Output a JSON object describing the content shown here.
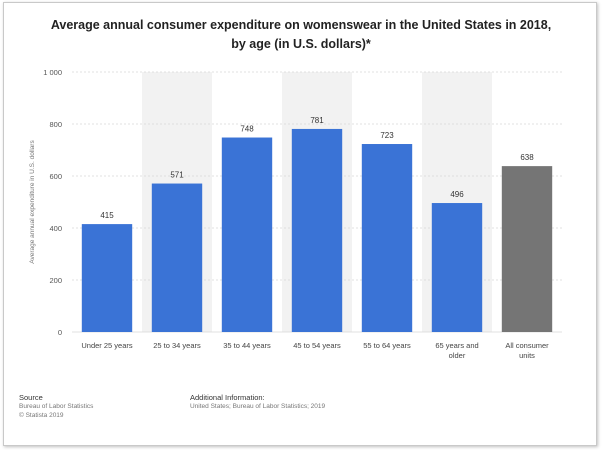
{
  "chart_data": {
    "type": "bar",
    "title_line1": "Average annual consumer expenditure on womenswear in the United States in 2018,",
    "title_line2": "by age (in U.S. dollars)*",
    "xlabel": "",
    "ylabel": "Average annual expenditure in U.S. dollars",
    "ylim": [
      0,
      1000
    ],
    "yticks": [
      0,
      200,
      400,
      600,
      800,
      1000
    ],
    "ytick_labels": [
      "0",
      "200",
      "400",
      "600",
      "800",
      "1 000"
    ],
    "grid": true,
    "categories": [
      [
        "Under 25 years"
      ],
      [
        "25 to 34 years"
      ],
      [
        "35 to 44 years"
      ],
      [
        "45 to 54 years"
      ],
      [
        "55 to 64 years"
      ],
      [
        "65 years and",
        "older"
      ],
      [
        "All consumer",
        "units"
      ]
    ],
    "values": [
      415,
      571,
      748,
      781,
      723,
      496,
      638
    ],
    "value_labels": [
      "415",
      "571",
      "748",
      "781",
      "723",
      "496",
      "638"
    ],
    "bar_colors": [
      "#3a73d6",
      "#3a73d6",
      "#3a73d6",
      "#3a73d6",
      "#3a73d6",
      "#3a73d6",
      "#757575"
    ]
  },
  "footer": {
    "source_label": "Source",
    "source_lines": [
      "Bureau of Labor Statistics",
      "© Statista 2019"
    ],
    "info_label": "Additional Information:",
    "info_lines": [
      "United States; Bureau of Labor Statistics; 2019"
    ]
  }
}
